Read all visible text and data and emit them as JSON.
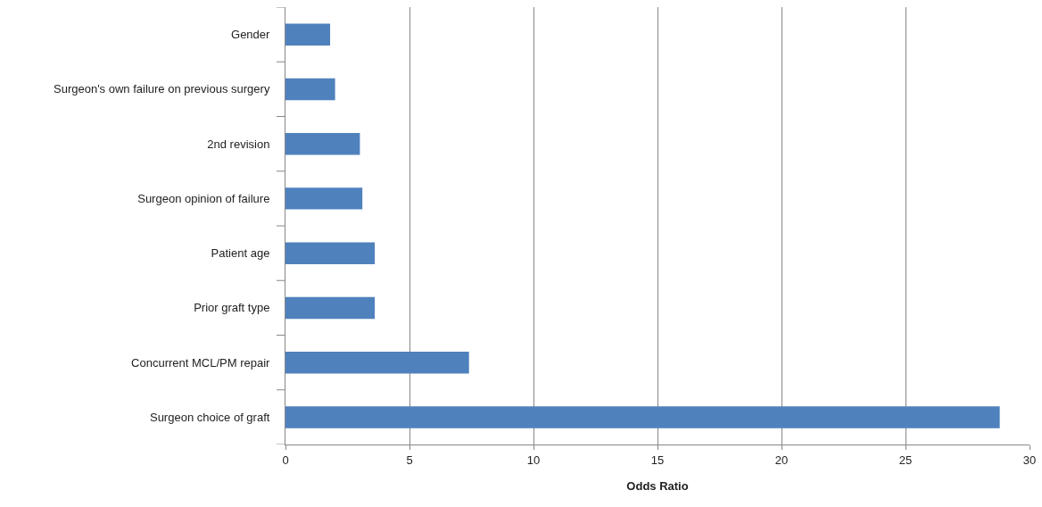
{
  "chart_data": {
    "type": "bar",
    "orientation": "horizontal",
    "xlabel": "Odds Ratio",
    "categories": [
      "Gender",
      "Surgeon's own failure on previous surgery",
      "2nd revision",
      "Surgeon opinion of failure",
      "Patient age",
      "Prior graft type",
      "Concurrent MCL/PM repair",
      "Surgeon choice of graft"
    ],
    "values": [
      1.8,
      2.0,
      3.0,
      3.1,
      3.6,
      3.6,
      7.4,
      28.8
    ],
    "color": "#4f81bd",
    "xlim": [
      0,
      30
    ],
    "xticks": [
      0,
      5,
      10,
      15,
      20,
      25,
      30
    ],
    "grid": "x"
  }
}
